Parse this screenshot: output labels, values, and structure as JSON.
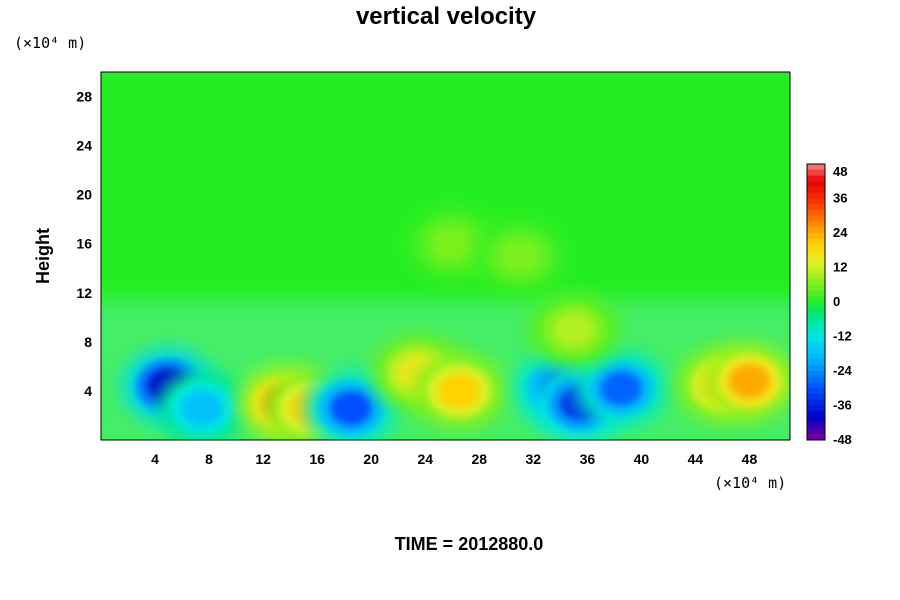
{
  "chart_data": {
    "type": "heatmap",
    "title": "vertical velocity",
    "ylabel": "Height",
    "x_unit": "(×10⁴ m)",
    "y_unit": "(×10⁴ m)",
    "footer": "TIME = 2012880.0",
    "x_ticks": [
      4,
      8,
      12,
      16,
      20,
      24,
      28,
      32,
      36,
      40,
      44,
      48
    ],
    "y_ticks": [
      4,
      8,
      12,
      16,
      20,
      24,
      28
    ],
    "xlim": [
      0,
      51
    ],
    "ylim": [
      0,
      30
    ],
    "colorbar": {
      "ticks": [
        48,
        36,
        24,
        12,
        0,
        -12,
        -24,
        -36,
        -48
      ],
      "range": [
        -48,
        48
      ]
    },
    "features": [
      {
        "x": 5.0,
        "y": 4.4,
        "value": -40
      },
      {
        "x": 7.5,
        "y": 2.6,
        "value": -18
      },
      {
        "x": 13.5,
        "y": 3.0,
        "value": 26
      },
      {
        "x": 15.5,
        "y": 2.6,
        "value": 20
      },
      {
        "x": 18.5,
        "y": 2.6,
        "value": -30
      },
      {
        "x": 23.5,
        "y": 5.5,
        "value": 16
      },
      {
        "x": 26.5,
        "y": 4.0,
        "value": 20
      },
      {
        "x": 34.0,
        "y": 4.2,
        "value": -30
      },
      {
        "x": 35.5,
        "y": 3.0,
        "value": -34
      },
      {
        "x": 38.5,
        "y": 4.2,
        "value": -28
      },
      {
        "x": 35.0,
        "y": 9.0,
        "value": 10
      },
      {
        "x": 46.0,
        "y": 4.5,
        "value": 20
      },
      {
        "x": 48.0,
        "y": 4.8,
        "value": 24
      },
      {
        "x": 26.0,
        "y": 16.0,
        "value": 6
      },
      {
        "x": 31.0,
        "y": 15.0,
        "value": 6
      }
    ]
  }
}
